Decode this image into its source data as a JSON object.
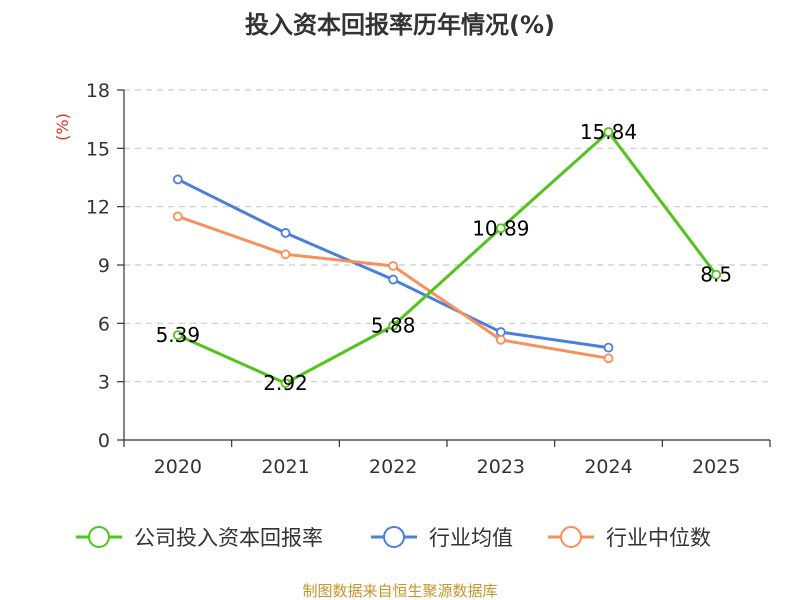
{
  "chart_data": {
    "type": "line",
    "title": "投入资本回报率历年情况(%)",
    "ylabel": "(%)",
    "xlabel": "",
    "categories": [
      "2020",
      "2021",
      "2022",
      "2023",
      "2024",
      "2025"
    ],
    "ylim": [
      0,
      18
    ],
    "yticks": [
      0,
      3,
      6,
      9,
      12,
      15,
      18
    ],
    "grid": true,
    "legend_position": "bottom",
    "series": [
      {
        "name": "公司投入资本回报率",
        "color": "#52c41a",
        "values": [
          5.39,
          2.92,
          5.88,
          10.89,
          15.84,
          8.5
        ],
        "labels": [
          "5.39",
          "2.92",
          "5.88",
          "10.89",
          "15.84",
          "8.5"
        ]
      },
      {
        "name": "行业均值",
        "color": "#4a7fdc",
        "values": [
          13.4,
          10.65,
          8.25,
          5.55,
          4.75,
          null
        ]
      },
      {
        "name": "行业中位数",
        "color": "#f98f5a",
        "values": [
          11.5,
          9.55,
          8.95,
          5.15,
          4.2,
          null
        ]
      }
    ],
    "source": "制图数据来自恒生聚源数据库"
  }
}
